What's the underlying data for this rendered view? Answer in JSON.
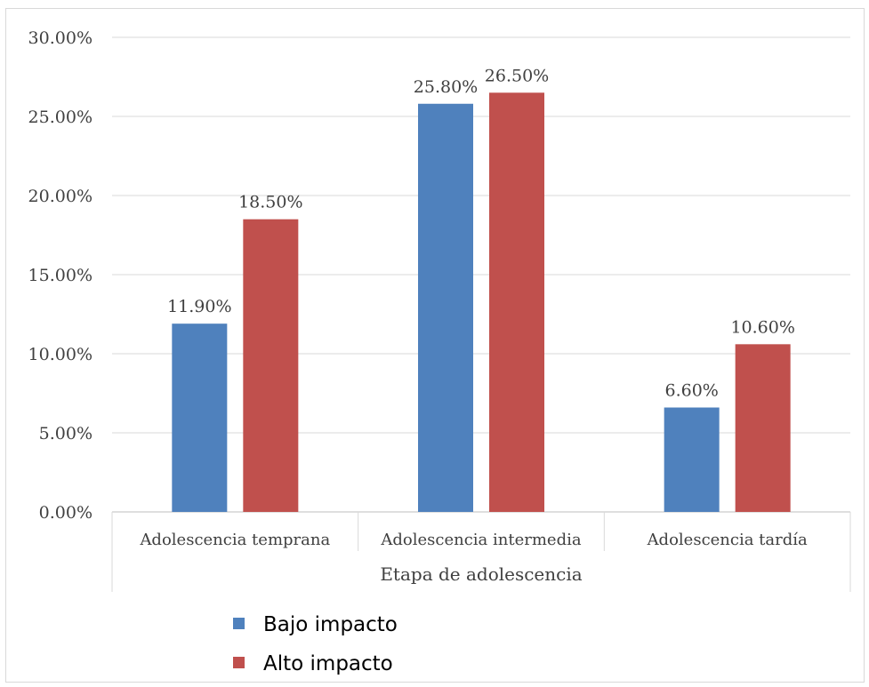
{
  "chart_data": {
    "type": "bar",
    "xlabel": "Etapa de adolescencia",
    "ylabel": "",
    "ylim": [
      0,
      0.3
    ],
    "y_ticks": [
      "0.00%",
      "5.00%",
      "10.00%",
      "15.00%",
      "20.00%",
      "25.00%",
      "30.00%"
    ],
    "categories": [
      "Adolescencia temprana",
      "Adolescencia intermedia",
      "Adolescencia tardía"
    ],
    "series": [
      {
        "name": "Bajo impacto",
        "values": [
          0.119,
          0.258,
          0.066
        ],
        "labels": [
          "11.90%",
          "25.80%",
          "6.60%"
        ],
        "color": "#4f81bd"
      },
      {
        "name": "Alto impacto",
        "values": [
          0.185,
          0.265,
          0.106
        ],
        "labels": [
          "18.50%",
          "26.50%",
          "10.60%"
        ],
        "color": "#c0504d"
      }
    ],
    "grid": true,
    "legend_position": "bottom-left"
  }
}
